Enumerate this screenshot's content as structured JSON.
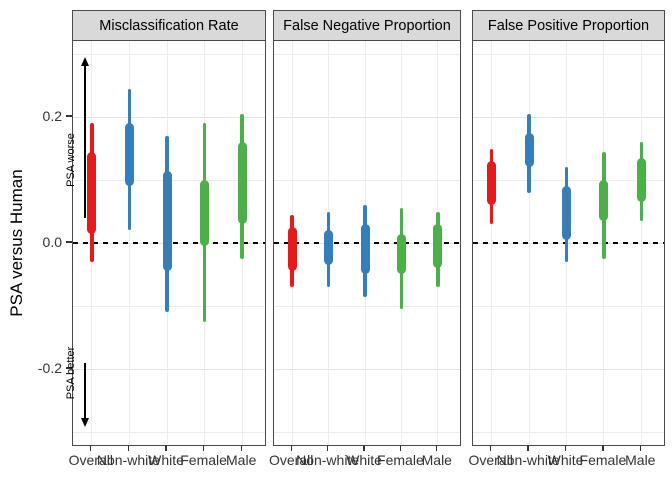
{
  "chart_data": {
    "type": "interval",
    "ylabel": "PSA versus Human",
    "categories": [
      "Overall",
      "Non-white",
      "White",
      "Female",
      "Male"
    ],
    "category_colors": [
      "#e41a1c",
      "#377eb8",
      "#377eb8",
      "#4daf4a",
      "#4daf4a"
    ],
    "y_ticks": [
      {
        "label": "0.2",
        "value": 0.2
      },
      {
        "label": "0.0",
        "value": 0.0
      },
      {
        "label": "-0.2",
        "value": -0.2
      }
    ],
    "ylim": [
      -0.32,
      0.32
    ],
    "gridlines": {
      "major": [
        0.2,
        0.0,
        -0.2
      ],
      "minor": [
        0.3,
        0.1,
        -0.1,
        -0.3
      ]
    },
    "reference_line": {
      "value": 0,
      "style": "dashed"
    },
    "annotations": [
      {
        "text": "PSA worse",
        "arrow": "up"
      },
      {
        "text": "PSA better",
        "arrow": "down"
      }
    ],
    "facets": [
      {
        "title": "Misclassification Rate",
        "intervals": [
          {
            "category": "Overall",
            "outer": [
              -0.03,
              0.19
            ],
            "inner": [
              0.015,
              0.145
            ]
          },
          {
            "category": "Non-white",
            "outer": [
              0.02,
              0.245
            ],
            "inner": [
              0.09,
              0.19
            ]
          },
          {
            "category": "White",
            "outer": [
              -0.11,
              0.17
            ],
            "inner": [
              -0.045,
              0.115
            ]
          },
          {
            "category": "Female",
            "outer": [
              -0.125,
              0.19
            ],
            "inner": [
              -0.005,
              0.1
            ]
          },
          {
            "category": "Male",
            "outer": [
              -0.025,
              0.205
            ],
            "inner": [
              0.03,
              0.16
            ]
          }
        ]
      },
      {
        "title": "False Negative Proportion",
        "intervals": [
          {
            "category": "Overall",
            "outer": [
              -0.07,
              0.045
            ],
            "inner": [
              -0.045,
              0.025
            ]
          },
          {
            "category": "Non-white",
            "outer": [
              -0.07,
              0.05
            ],
            "inner": [
              -0.035,
              0.02
            ]
          },
          {
            "category": "White",
            "outer": [
              -0.085,
              0.06
            ],
            "inner": [
              -0.05,
              0.03
            ]
          },
          {
            "category": "Female",
            "outer": [
              -0.105,
              0.055
            ],
            "inner": [
              -0.05,
              0.015
            ]
          },
          {
            "category": "Male",
            "outer": [
              -0.07,
              0.05
            ],
            "inner": [
              -0.04,
              0.03
            ]
          }
        ]
      },
      {
        "title": "False Positive Proportion",
        "intervals": [
          {
            "category": "Overall",
            "outer": [
              0.03,
              0.15
            ],
            "inner": [
              0.06,
              0.13
            ]
          },
          {
            "category": "Non-white",
            "outer": [
              0.08,
              0.205
            ],
            "inner": [
              0.12,
              0.175
            ]
          },
          {
            "category": "White",
            "outer": [
              -0.03,
              0.12
            ],
            "inner": [
              0.005,
              0.09
            ]
          },
          {
            "category": "Female",
            "outer": [
              -0.025,
              0.145
            ],
            "inner": [
              0.035,
              0.1
            ]
          },
          {
            "category": "Male",
            "outer": [
              0.035,
              0.16
            ],
            "inner": [
              0.065,
              0.135
            ]
          }
        ]
      }
    ]
  }
}
